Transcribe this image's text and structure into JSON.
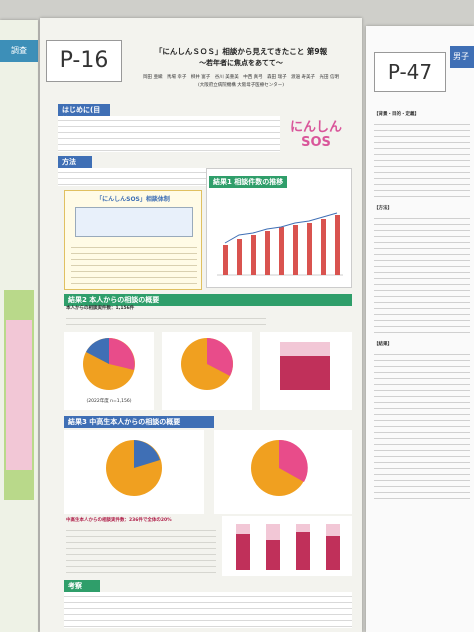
{
  "left_poster": {
    "tab": "調査"
  },
  "poster": {
    "number": "P-16",
    "title": "「にんしんＳＯＳ」相談から見えてきたこと 第9報",
    "subtitle": "～若年者に焦点をあてて～",
    "authors": "岡田 亜織　馬場 幸子　柳井 富子　谷川 美重美　中西 真弓　森田 瑞子　渡邉 寿美子　光田 信明",
    "affiliation": "(大阪府立病院機構 大阪母子医療センター)",
    "logo": "にんしんSOS",
    "sections": {
      "intro": "はじめに(目的)",
      "method": "方法",
      "system": "「にんしんSOS」相談体制",
      "result1": "結果1 相談件数の推移",
      "result2": "結果2 本人からの相談の概要",
      "result3": "結果3 中高生本人からの相談の概要",
      "discussion": "考察"
    },
    "notes": {
      "result2": "本人からの相談実件数：1,156件",
      "result3": "中高生本人からの相談実件数：236件で全体の20%",
      "caption": "(2022年度 n=1,156)"
    }
  },
  "right_poster": {
    "number": "P-47",
    "tab": "男子",
    "headings": [
      "【背景・目的・定義】",
      "【方法】",
      "【結果】"
    ]
  }
}
